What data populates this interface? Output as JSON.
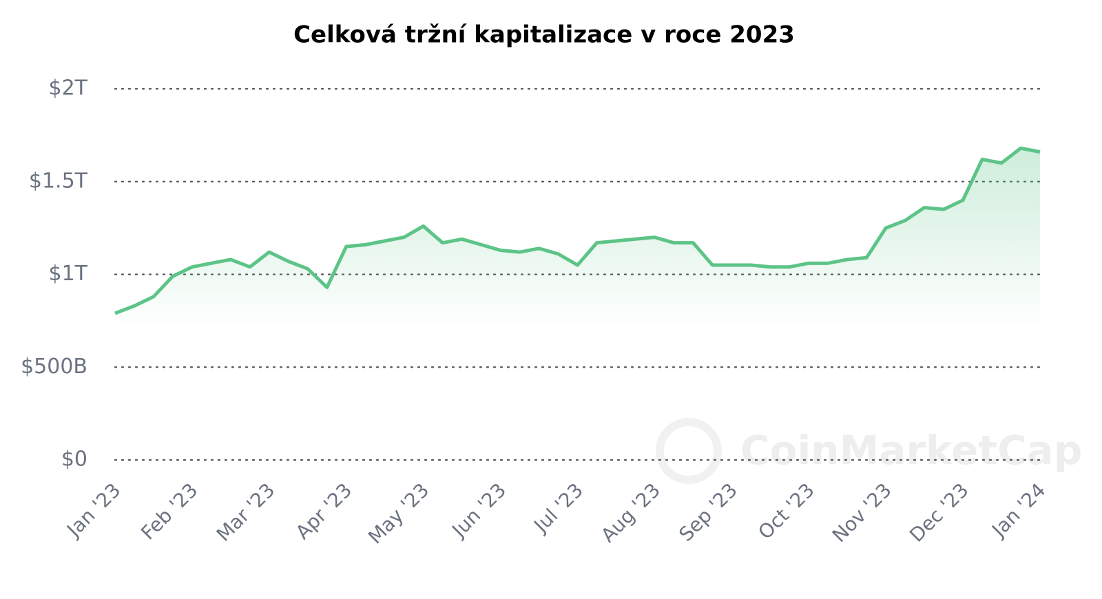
{
  "chart_data": {
    "type": "line",
    "title": "Celková tržní kapitalizace v roce 2023",
    "watermark": "CoinMarketCap",
    "categories": [
      "Jan '23",
      null,
      null,
      null,
      "Feb '23",
      null,
      null,
      null,
      "Mar '23",
      null,
      null,
      null,
      "Apr '23",
      null,
      null,
      null,
      "May '23",
      null,
      null,
      null,
      "Jun '23",
      null,
      null,
      null,
      "Jul '23",
      null,
      null,
      null,
      "Aug '23",
      null,
      null,
      null,
      "Sep '23",
      null,
      null,
      null,
      "Oct '23",
      null,
      null,
      null,
      "Nov '23",
      null,
      null,
      null,
      "Dec '23",
      null,
      null,
      null,
      "Jan '24"
    ],
    "series": [
      {
        "color": "#5cc487",
        "values": [
          790,
          830,
          880,
          990,
          1040,
          1060,
          1080,
          1040,
          1120,
          1070,
          1030,
          930,
          1150,
          1160,
          1180,
          1200,
          1260,
          1170,
          1190,
          1160,
          1130,
          1120,
          1140,
          1110,
          1050,
          1170,
          1180,
          1190,
          1200,
          1170,
          1170,
          1050,
          1050,
          1050,
          1040,
          1040,
          1060,
          1060,
          1080,
          1090,
          1250,
          1290,
          1360,
          1350,
          1400,
          1620,
          1600,
          1680,
          1660
        ]
      }
    ],
    "ylim": [
      0,
      2000
    ],
    "yticks": [
      {
        "value": 0,
        "label": "$0"
      },
      {
        "value": 500,
        "label": "$500B"
      },
      {
        "value": 1000,
        "label": "$1T"
      },
      {
        "value": 1500,
        "label": "$1.5T"
      },
      {
        "value": 2000,
        "label": "$2T"
      }
    ],
    "grid": true
  }
}
